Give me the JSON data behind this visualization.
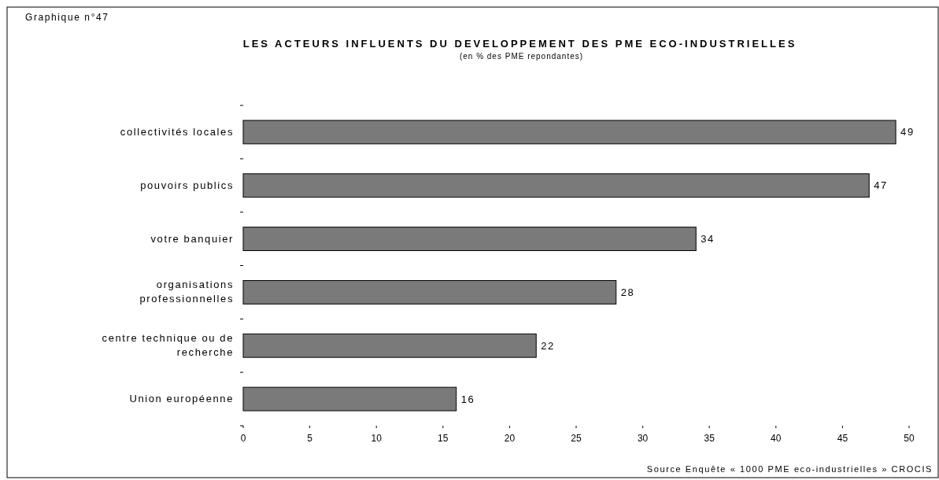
{
  "chart_data": {
    "type": "bar",
    "orientation": "horizontal",
    "title": "LES ACTEURS INFLUENTS DU DEVELOPPEMENT DES PME ECO-INDUSTRIELLES",
    "subtitle": "(en % des PME repondantes)",
    "categories": [
      "collectivités locales",
      "pouvoirs publics",
      "votre banquier",
      "organisations professionnelles",
      "centre technique ou de recherche",
      "Union européenne"
    ],
    "values": [
      49,
      47,
      34,
      28,
      22,
      16
    ],
    "color": "#7a7a7a",
    "data_labels": true,
    "xlim": [
      0,
      50
    ],
    "xticks": [
      0,
      5,
      10,
      15,
      20,
      25,
      30,
      35,
      40,
      45,
      50
    ],
    "grid": false,
    "annotations": [
      "Graphique n°47",
      "Source  Enquête « 1000 PME eco-industrielles » CROCIS"
    ]
  }
}
